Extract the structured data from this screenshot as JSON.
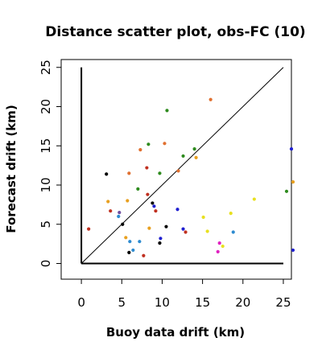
{
  "chart_data": {
    "type": "scatter",
    "title": "Distance scatter plot, obs-FC (10)",
    "xlabel": "Buoy data drift (km)",
    "ylabel": "Forecast drift (km)",
    "xlim": [
      -2.5,
      26
    ],
    "ylim": [
      -2,
      26
    ],
    "xticks": [
      0,
      5,
      10,
      15,
      20,
      25
    ],
    "yticks": [
      0,
      5,
      10,
      15,
      20,
      25
    ],
    "grid": false,
    "legend": "none",
    "reference_lines": [
      {
        "type": "diagonal",
        "from": [
          0,
          0
        ],
        "to": [
          25,
          25
        ],
        "color": "#000000"
      },
      {
        "type": "axis-x",
        "from": [
          0,
          0
        ],
        "to": [
          25,
          0
        ],
        "color": "#000000"
      },
      {
        "type": "axis-y",
        "from": [
          0,
          0
        ],
        "to": [
          0,
          25
        ],
        "color": "#000000"
      }
    ],
    "points": [
      {
        "x": 10.6,
        "y": 19.5,
        "color": "#2e8b1e"
      },
      {
        "x": 16.0,
        "y": 20.9,
        "color": "#e07030"
      },
      {
        "x": 8.3,
        "y": 15.2,
        "color": "#2e8b1e"
      },
      {
        "x": 10.3,
        "y": 15.3,
        "color": "#e07030"
      },
      {
        "x": 7.3,
        "y": 14.5,
        "color": "#e07030"
      },
      {
        "x": 14.0,
        "y": 14.6,
        "color": "#2e8b1e"
      },
      {
        "x": 12.6,
        "y": 13.7,
        "color": "#2e8b1e"
      },
      {
        "x": 14.2,
        "y": 13.5,
        "color": "#e8a020"
      },
      {
        "x": 26.0,
        "y": 14.6,
        "color": "#2020d0"
      },
      {
        "x": 3.1,
        "y": 11.4,
        "color": "#000000"
      },
      {
        "x": 5.9,
        "y": 11.5,
        "color": "#e07030"
      },
      {
        "x": 8.1,
        "y": 12.2,
        "color": "#c03020"
      },
      {
        "x": 9.7,
        "y": 11.5,
        "color": "#2e8b1e"
      },
      {
        "x": 12.0,
        "y": 11.8,
        "color": "#e07030"
      },
      {
        "x": 7.0,
        "y": 9.5,
        "color": "#2e8b1e"
      },
      {
        "x": 8.2,
        "y": 8.8,
        "color": "#c03020"
      },
      {
        "x": 25.4,
        "y": 9.2,
        "color": "#2e8b1e"
      },
      {
        "x": 26.2,
        "y": 10.4,
        "color": "#e8a020"
      },
      {
        "x": 21.4,
        "y": 8.2,
        "color": "#e8e020"
      },
      {
        "x": 3.3,
        "y": 7.9,
        "color": "#e8a020"
      },
      {
        "x": 5.7,
        "y": 8.0,
        "color": "#e8a020"
      },
      {
        "x": 8.8,
        "y": 7.7,
        "color": "#000000"
      },
      {
        "x": 9.0,
        "y": 7.3,
        "color": "#2020d0"
      },
      {
        "x": 9.2,
        "y": 6.7,
        "color": "#c03020"
      },
      {
        "x": 11.9,
        "y": 6.9,
        "color": "#2020d0"
      },
      {
        "x": 3.6,
        "y": 6.7,
        "color": "#c03020"
      },
      {
        "x": 4.7,
        "y": 6.5,
        "color": "#7050a0"
      },
      {
        "x": 4.6,
        "y": 6.0,
        "color": "#2e8bd0"
      },
      {
        "x": 15.1,
        "y": 5.9,
        "color": "#e8e020"
      },
      {
        "x": 18.5,
        "y": 6.4,
        "color": "#e8e020"
      },
      {
        "x": 5.1,
        "y": 5.0,
        "color": "#000000"
      },
      {
        "x": 10.5,
        "y": 4.7,
        "color": "#000000"
      },
      {
        "x": 12.6,
        "y": 4.4,
        "color": "#2020d0"
      },
      {
        "x": 12.9,
        "y": 4.0,
        "color": "#c03020"
      },
      {
        "x": 15.6,
        "y": 4.1,
        "color": "#e8e020"
      },
      {
        "x": 18.8,
        "y": 4.0,
        "color": "#2e8bd0"
      },
      {
        "x": 0.9,
        "y": 4.4,
        "color": "#c03020"
      },
      {
        "x": 8.4,
        "y": 4.5,
        "color": "#e8a020"
      },
      {
        "x": 5.5,
        "y": 3.3,
        "color": "#e8a020"
      },
      {
        "x": 9.8,
        "y": 3.2,
        "color": "#2020d0"
      },
      {
        "x": 6.0,
        "y": 2.8,
        "color": "#2e8bd0"
      },
      {
        "x": 7.2,
        "y": 2.8,
        "color": "#2e8bd0"
      },
      {
        "x": 9.7,
        "y": 2.6,
        "color": "#000000"
      },
      {
        "x": 17.1,
        "y": 2.6,
        "color": "#e020c0"
      },
      {
        "x": 17.5,
        "y": 2.2,
        "color": "#e8e020"
      },
      {
        "x": 6.4,
        "y": 1.7,
        "color": "#2e8bd0"
      },
      {
        "x": 16.9,
        "y": 1.5,
        "color": "#e020c0"
      },
      {
        "x": 26.2,
        "y": 1.7,
        "color": "#2020d0"
      },
      {
        "x": 5.9,
        "y": 1.4,
        "color": "#000000"
      },
      {
        "x": 7.7,
        "y": 1.0,
        "color": "#c03020"
      }
    ]
  }
}
